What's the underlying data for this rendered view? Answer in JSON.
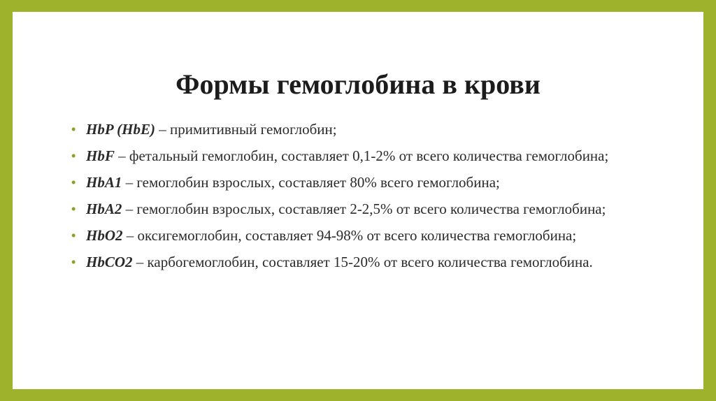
{
  "colors": {
    "frame": "#9fb22c",
    "background": "#ffffff",
    "bullet": "#8aa020",
    "text": "#2a2a2a"
  },
  "title": "Формы гемоглобина в крови",
  "items": [
    {
      "bullet": "•",
      "term": "HbP (HbE)",
      "text": " – примитивный гемоглобин;"
    },
    {
      "bullet": "•",
      "term": "HbF",
      "text": " – фетальный гемоглобин, составляет 0,1-2% от всего количества гемоглобина;"
    },
    {
      "bullet": "•",
      "term": "HbA1",
      "text": " – гемоглобин взрослых, составляет 80% всего гемоглобина;"
    },
    {
      "bullet": "•",
      "term": "HbA2",
      "text": " – гемоглобин взрослых, составляет 2-2,5% от всего количества гемоглобина;"
    },
    {
      "bullet": "•",
      "term": "HbO2",
      "text": " – оксигемоглобин, составляет 94-98% от всего количества гемоглобина;"
    },
    {
      "bullet": "•",
      "term": "HbCO2",
      "text": " – карбогемоглобин, составляет 15-20% от всего количества гемоглобина."
    }
  ]
}
